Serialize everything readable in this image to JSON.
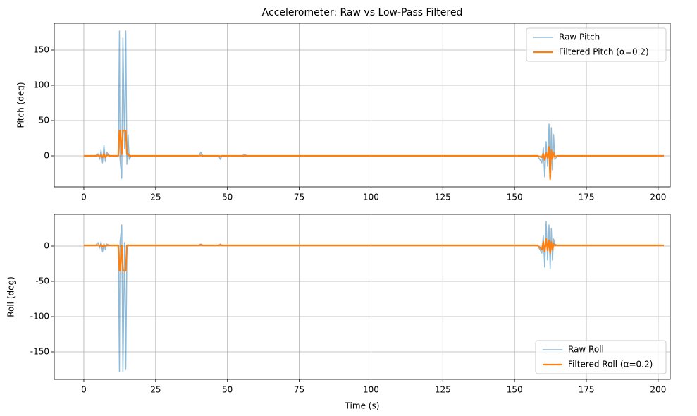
{
  "chart_data": [
    {
      "type": "line",
      "title": "Accelerometer: Raw vs Low-Pass Filtered",
      "y_label": "Pitch (deg)",
      "x": [
        0,
        4,
        5,
        5.5,
        6,
        6.5,
        7,
        7.5,
        8,
        9,
        12,
        12.4,
        12.6,
        13.2,
        13.6,
        14.2,
        14.6,
        15,
        15.4,
        15.8,
        16.5,
        20,
        30,
        40,
        40.7,
        41.5,
        47,
        47.5,
        48,
        55,
        56,
        57,
        80,
        100,
        120,
        140,
        158,
        159.5,
        160,
        160.5,
        161,
        161.5,
        162,
        162.4,
        162.8,
        163.2,
        163.6,
        164,
        165,
        170,
        185,
        202
      ],
      "series": [
        {
          "name": "Raw Pitch",
          "color": "#1f77b4",
          "values": [
            0,
            0,
            3,
            -5,
            8,
            -10,
            15,
            -8,
            5,
            0,
            0,
            177,
            -5,
            -32,
            167,
            10,
            177,
            -12,
            30,
            -5,
            0,
            0,
            0,
            0,
            5,
            0,
            0,
            -5,
            0,
            0,
            2,
            0,
            0,
            0,
            0,
            0,
            0,
            -10,
            12,
            -30,
            20,
            -15,
            45,
            -32,
            40,
            -20,
            30,
            -5,
            0,
            0,
            0,
            0
          ]
        },
        {
          "name": "Filtered Pitch (α=0.2)",
          "color": "#ff7f0e",
          "values": [
            0,
            0,
            0.5,
            -1,
            1.5,
            -2,
            3,
            -2,
            1,
            0,
            0,
            36,
            36,
            2,
            36,
            36,
            36,
            2,
            3,
            0,
            0,
            0,
            0,
            0,
            0.5,
            0,
            0,
            -0.5,
            0,
            0,
            0,
            0,
            0,
            0,
            0,
            0,
            0,
            -2,
            3,
            -6,
            4,
            -3,
            13,
            -33,
            8,
            -4,
            5,
            -1,
            0,
            0,
            0,
            0
          ]
        }
      ],
      "xlim": [
        -10.3,
        204.2
      ],
      "ylim": [
        -44,
        188
      ],
      "xticks": [
        0,
        25,
        50,
        75,
        100,
        125,
        150,
        175,
        200
      ],
      "yticks": [
        0,
        50,
        100,
        150
      ],
      "grid": true,
      "legend": "upper right"
    },
    {
      "type": "line",
      "x_label": "Time (s)",
      "y_label": "Roll (deg)",
      "x": [
        0,
        4,
        5,
        5.5,
        6,
        6.5,
        7,
        7.5,
        8,
        9,
        12,
        12.4,
        12.6,
        13.2,
        13.6,
        14.2,
        14.6,
        15,
        15.4,
        15.8,
        16.5,
        20,
        30,
        40,
        40.7,
        41.5,
        47,
        47.5,
        48,
        55,
        56,
        57,
        80,
        100,
        120,
        140,
        158,
        159.5,
        160,
        160.5,
        161,
        161.5,
        162,
        162.4,
        162.8,
        163.2,
        163.6,
        164,
        165,
        170,
        185,
        202
      ],
      "series": [
        {
          "name": "Raw Roll",
          "color": "#1f77b4",
          "values": [
            1,
            1,
            5,
            -3,
            6,
            -8,
            4,
            -5,
            3,
            1,
            1,
            -178,
            5,
            30,
            -178,
            5,
            -175,
            -10,
            2,
            1,
            1,
            1,
            1,
            1,
            3,
            1,
            1,
            3,
            1,
            1,
            1,
            1,
            1,
            1,
            1,
            1,
            1,
            -10,
            15,
            -30,
            35,
            -20,
            30,
            -32,
            25,
            -20,
            10,
            3,
            1,
            1,
            1,
            1
          ]
        },
        {
          "name": "Filtered Roll (α=0.2)",
          "color": "#ff7f0e",
          "values": [
            1,
            1,
            1.5,
            0,
            2,
            -1,
            1.5,
            0,
            1,
            1,
            1,
            -35,
            -35,
            1,
            -35,
            -35,
            -35,
            1,
            1,
            1,
            1,
            1,
            1,
            1,
            1.5,
            1,
            1,
            1.5,
            1,
            1,
            1,
            1,
            1,
            1,
            1,
            1,
            1,
            -5,
            6,
            -8,
            10,
            -6,
            8,
            -10,
            6,
            -5,
            3,
            1,
            1,
            1,
            1,
            1
          ]
        }
      ],
      "xlim": [
        -10.3,
        204.2
      ],
      "ylim": [
        -189,
        45
      ],
      "xticks": [
        0,
        25,
        50,
        75,
        100,
        125,
        150,
        175,
        200
      ],
      "yticks": [
        -150,
        -100,
        -50,
        0
      ],
      "grid": true,
      "legend": "lower right"
    }
  ]
}
